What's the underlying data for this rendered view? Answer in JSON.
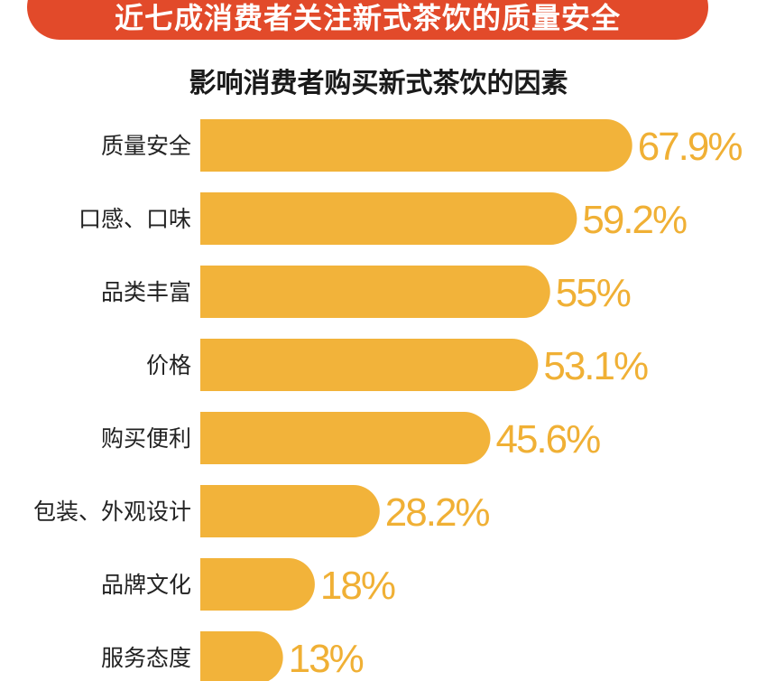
{
  "banner": {
    "text": "近七成消费者关注新式茶饮的质量安全"
  },
  "chart_data": {
    "type": "bar",
    "orientation": "horizontal",
    "title": "影响消费者购买新式茶饮的因素",
    "categories": [
      "质量安全",
      "口感、口味",
      "品类丰富",
      "价格",
      "购买便利",
      "包装、外观设计",
      "品牌文化",
      "服务态度"
    ],
    "values": [
      67.9,
      59.2,
      55,
      53.1,
      45.6,
      28.2,
      18,
      13
    ],
    "value_labels": [
      "67.9%",
      "59.2%",
      "55%",
      "53.1%",
      "45.6%",
      "28.2%",
      "18%",
      "13%"
    ],
    "unit": "%",
    "xlim": [
      0,
      100
    ],
    "grid": false,
    "legend": "none",
    "bar_color": "#f2b33a",
    "label_color": "#f0b035"
  },
  "colors": {
    "banner_bg": "#e24a2a",
    "banner_text": "#ffffff",
    "title_text": "#1a1a1a",
    "category_text": "#222222"
  }
}
